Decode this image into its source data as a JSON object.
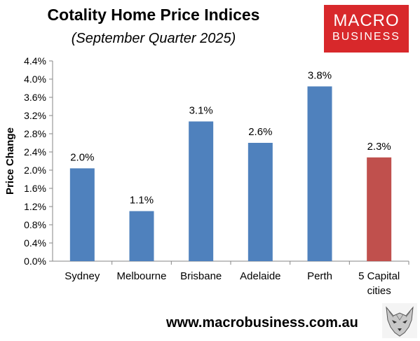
{
  "title": "Cotality Home Price Indices",
  "subtitle": "(September Quarter 2025)",
  "logo": {
    "line1": "MACRO",
    "line2": "BUSINESS",
    "color": "#d8282b"
  },
  "website": "www.macrobusiness.com.au",
  "logo_icon": "wolf-icon",
  "chart_data": {
    "type": "bar",
    "title": "Cotality Home Price Indices",
    "subtitle": "(September Quarter 2025)",
    "ylabel": "Price Change",
    "xlabel": "",
    "categories": [
      "Sydney",
      "Melbourne",
      "Brisbane",
      "Adelaide",
      "Perth",
      "5 Capital cities"
    ],
    "values": [
      2.0,
      1.1,
      3.1,
      2.6,
      3.8,
      2.3
    ],
    "bar_values": [
      2.04,
      1.1,
      3.07,
      2.6,
      3.84,
      2.28
    ],
    "data_labels": [
      "2.0%",
      "1.1%",
      "3.1%",
      "2.6%",
      "3.8%",
      "2.3%"
    ],
    "bar_colors": [
      "#4f81bd",
      "#4f81bd",
      "#4f81bd",
      "#4f81bd",
      "#4f81bd",
      "#c0504d"
    ],
    "ylim": [
      0,
      4.4
    ],
    "yticks": [
      "0.0%",
      "0.4%",
      "0.8%",
      "1.2%",
      "1.6%",
      "2.0%",
      "2.4%",
      "2.8%",
      "3.2%",
      "3.6%",
      "4.0%",
      "4.4%"
    ],
    "ytick_values": [
      0,
      0.4,
      0.8,
      1.2,
      1.6,
      2.0,
      2.4,
      2.8,
      3.2,
      3.6,
      4.0,
      4.4
    ],
    "grid": false,
    "legend": "none"
  }
}
